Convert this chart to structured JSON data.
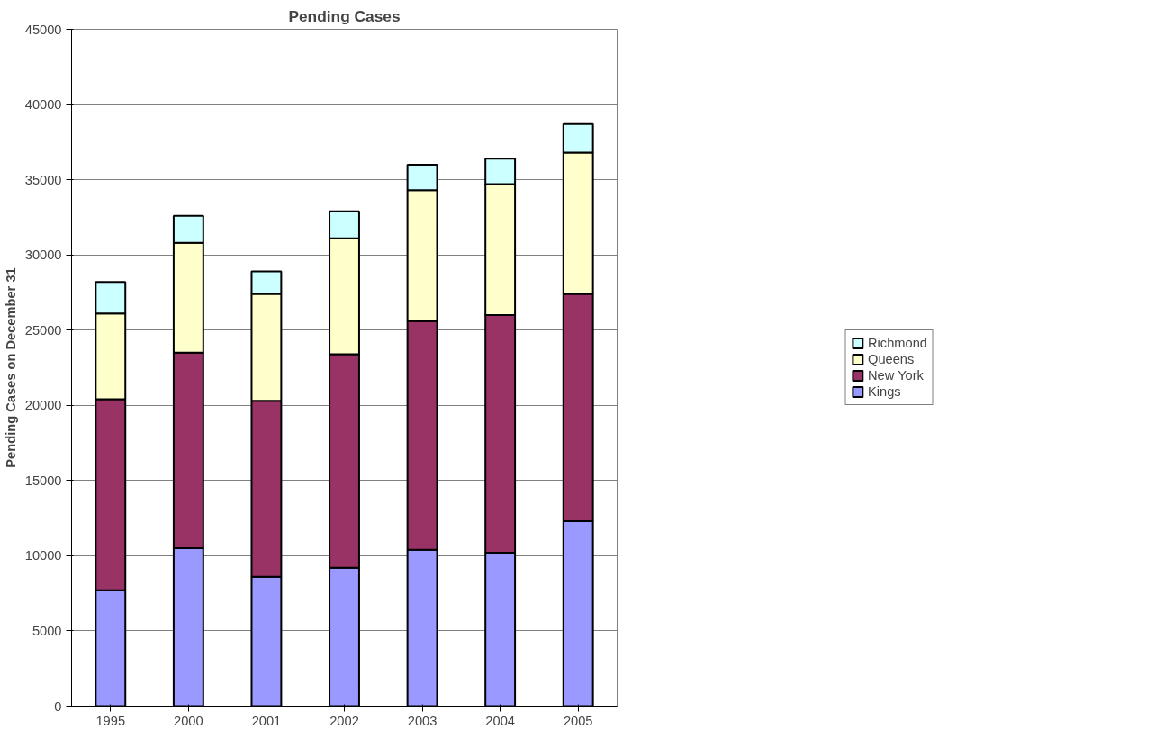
{
  "chart_data": {
    "type": "bar",
    "title": "Pending Cases",
    "ylabel": "Pending Cases on December 31",
    "categories": [
      "1995",
      "2000",
      "2001",
      "2002",
      "2003",
      "2004",
      "2005"
    ],
    "stacked": true,
    "series": [
      {
        "name": "Kings",
        "color": "#9999ff",
        "values": [
          7700,
          10500,
          8600,
          9200,
          10400,
          10200,
          12300
        ]
      },
      {
        "name": "New York",
        "color": "#993366",
        "values": [
          12700,
          13000,
          11700,
          14200,
          15200,
          15800,
          15100
        ]
      },
      {
        "name": "Queens",
        "color": "#ffffcc",
        "values": [
          5700,
          7300,
          7100,
          7700,
          8700,
          8700,
          9400
        ]
      },
      {
        "name": "Richmond",
        "color": "#ccffff",
        "values": [
          2100,
          1800,
          1500,
          1800,
          1700,
          1700,
          1900
        ]
      }
    ],
    "ylim": [
      0,
      45000
    ],
    "yticks": [
      0,
      5000,
      10000,
      15000,
      20000,
      25000,
      30000,
      35000,
      40000,
      45000
    ],
    "grid": "y",
    "legend": "right"
  }
}
